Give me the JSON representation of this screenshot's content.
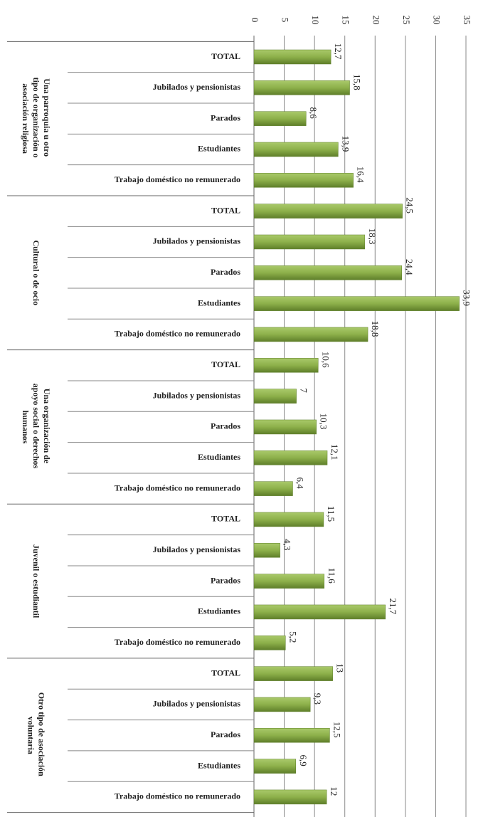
{
  "chart_data": {
    "type": "bar",
    "color": "#8db04a",
    "xlim": [
      0,
      35
    ],
    "xticks": [
      0,
      5,
      10,
      15,
      20,
      25,
      30,
      35
    ],
    "grid": true,
    "groups": [
      {
        "label": "Una parroquia u otro tipo de organización o asociación religiosa",
        "categories": [
          "TOTAL",
          "Jubilados y pensionistas",
          "Parados",
          "Estudiantes",
          "Trabajo doméstico no remunerado"
        ],
        "values": [
          12.7,
          15.8,
          8.6,
          13.9,
          16.4
        ],
        "value_labels": [
          "12,7",
          "15,8",
          "8,6",
          "13,9",
          "16,4"
        ]
      },
      {
        "label": "Cultural o de ocio",
        "categories": [
          "TOTAL",
          "Jubilados y pensionistas",
          "Parados",
          "Estudiantes",
          "Trabajo doméstico no remunerado"
        ],
        "values": [
          24.5,
          18.3,
          24.4,
          33.9,
          18.8
        ],
        "value_labels": [
          "24,5",
          "18,3",
          "24,4",
          "33,9",
          "18,8"
        ]
      },
      {
        "label": "Una organización de apoyo social o derechos humanos",
        "categories": [
          "TOTAL",
          "Jubilados y pensionistas",
          "Parados",
          "Estudiantes",
          "Trabajo doméstico no remunerado"
        ],
        "values": [
          10.6,
          7,
          10.3,
          12.1,
          6.4
        ],
        "value_labels": [
          "10,6",
          "7",
          "10,3",
          "12,1",
          "6,4"
        ]
      },
      {
        "label": "Juvenil o estudiantil",
        "categories": [
          "TOTAL",
          "Jubilados y pensionistas",
          "Parados",
          "Estudiantes",
          "Trabajo doméstico no remunerado"
        ],
        "values": [
          11.5,
          4.3,
          11.6,
          21.7,
          5.2
        ],
        "value_labels": [
          "11,5",
          "4,3",
          "11,6",
          "21,7",
          "5,2"
        ]
      },
      {
        "label": "Otro tipo de asociación voluntaria",
        "categories": [
          "TOTAL",
          "Jubilados y pensionistas",
          "Parados",
          "Estudiantes",
          "Trabajo doméstico no remunerado"
        ],
        "values": [
          13,
          9.3,
          12.5,
          6.9,
          12
        ],
        "value_labels": [
          "13",
          "9,3",
          "12,5",
          "6,9",
          "12"
        ]
      }
    ]
  }
}
